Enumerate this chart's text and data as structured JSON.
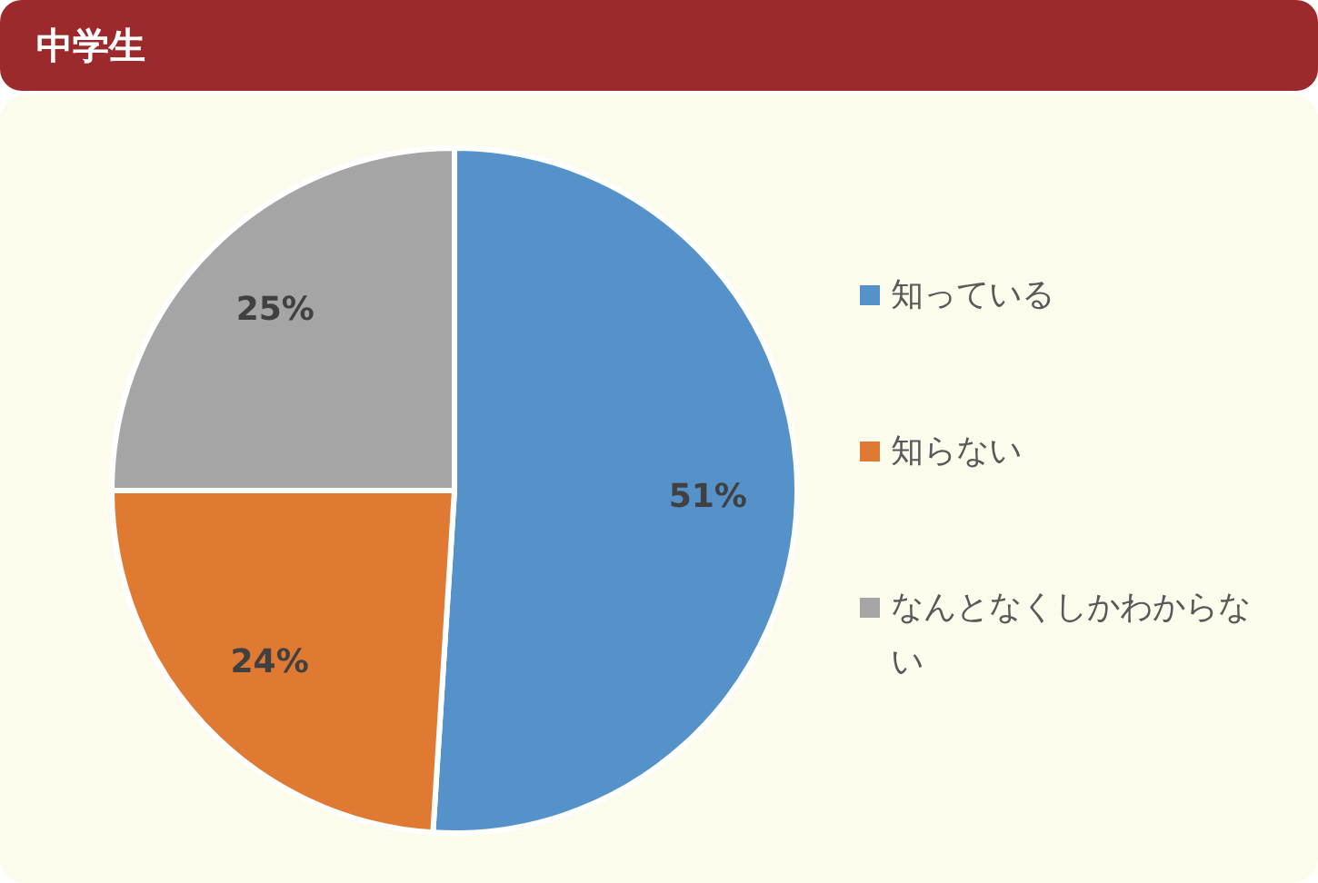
{
  "chart_data": {
    "type": "pie",
    "title": "中学生",
    "categories": [
      "知っている",
      "知らない",
      "なんとなくしかわからない"
    ],
    "values": [
      51,
      24,
      25
    ],
    "colors": [
      "#5592ca",
      "#e07a33",
      "#a5a5a5"
    ],
    "value_labels": [
      "51%",
      "24%",
      "25%"
    ],
    "legend": "right"
  }
}
